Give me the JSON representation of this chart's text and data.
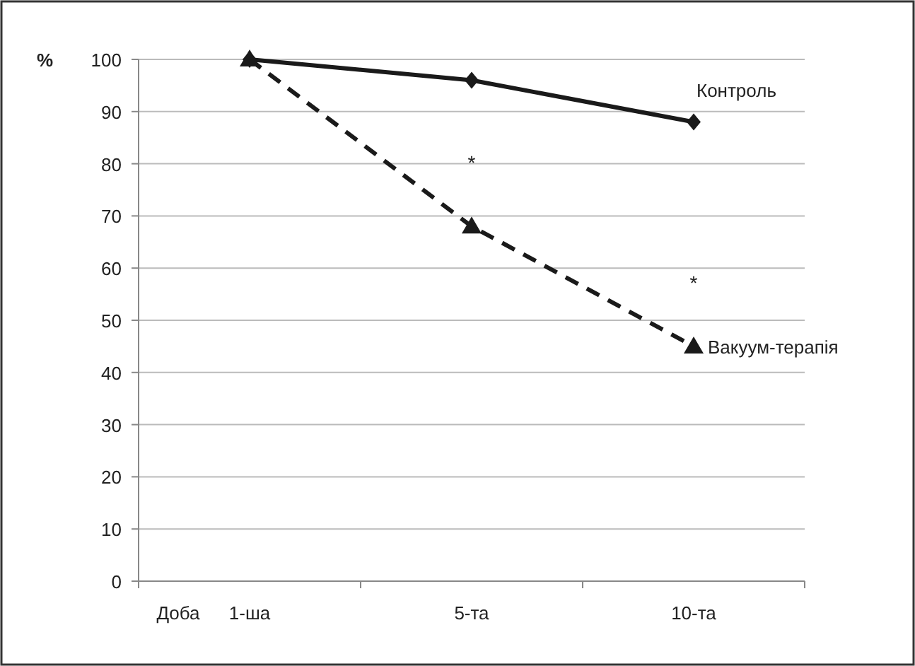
{
  "chart_data": {
    "type": "line",
    "xlabel": "Доба",
    "ylabel": "%",
    "categories": [
      "1-ша",
      "5-та",
      "10-та"
    ],
    "series": [
      {
        "name": "Контроль",
        "color": "#1a1a1a",
        "values": [
          100,
          96,
          88
        ],
        "marker": "diamond",
        "line_style": "solid"
      },
      {
        "name": "Вакуум-терапія",
        "color": "#1a1a1a",
        "values": [
          100,
          68,
          45
        ],
        "marker": "triangle",
        "line_style": "dashed"
      }
    ],
    "ylim": [
      0,
      100
    ],
    "yticks": [
      0,
      10,
      20,
      30,
      40,
      50,
      60,
      70,
      80,
      90,
      100
    ],
    "grid": "y",
    "annotations": [
      "*",
      "*"
    ]
  }
}
